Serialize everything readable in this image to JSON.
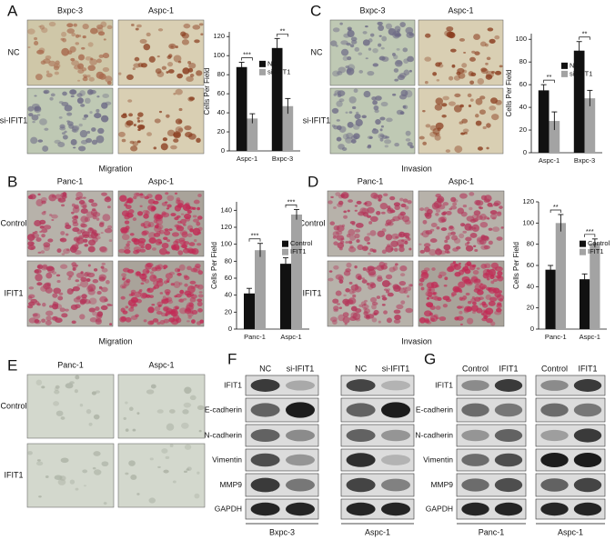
{
  "panels": {
    "A": {
      "label": "A",
      "columns": [
        "Bxpc-3",
        "Aspc-1"
      ],
      "rows": [
        "NC",
        "si-IFIT1"
      ],
      "caption": "Migration"
    },
    "B": {
      "label": "B",
      "columns": [
        "Panc-1",
        "Aspc-1"
      ],
      "rows": [
        "Control",
        "IFIT1"
      ],
      "caption": "Migration"
    },
    "C": {
      "label": "C",
      "columns": [
        "Bxpc-3",
        "Aspc-1"
      ],
      "rows": [
        "NC",
        "si-IFIT1"
      ],
      "caption": "Invasion"
    },
    "D": {
      "label": "D",
      "columns": [
        "Panc-1",
        "Aspc-1"
      ],
      "rows": [
        "Control",
        "IFIT1"
      ],
      "caption": "Invasion"
    },
    "E": {
      "label": "E",
      "columns": [
        "Panc-1",
        "Aspc-1"
      ],
      "rows": [
        "Control",
        "IFIT1"
      ]
    },
    "F": {
      "label": "F",
      "lanes": [
        "NC",
        "si-IFIT1",
        "NC",
        "si-IFIT1"
      ],
      "proteins": [
        "IFIT1",
        "E-cadherin",
        "N-cadherin",
        "Vimentin",
        "MMP9",
        "GAPDH"
      ],
      "groups": [
        "Bxpc-3",
        "Aspc-1"
      ]
    },
    "G": {
      "label": "G",
      "lanes": [
        "Control",
        "IFIT1",
        "Control",
        "IFIT1"
      ],
      "proteins": [
        "IFIT1",
        "E-cadherin",
        "N-cadherin",
        "Vimentin",
        "MMP9",
        "GAPDH"
      ],
      "groups": [
        "Panc-1",
        "Aspc-1"
      ]
    }
  },
  "chart_data": [
    {
      "type": "bar",
      "ylabel": "Cells Per Field",
      "categories": [
        "Aspc-1",
        "Bxpc-3"
      ],
      "series": [
        {
          "name": "NC",
          "color": "#111111",
          "values": [
            88,
            108
          ],
          "errors": [
            5,
            10
          ]
        },
        {
          "name": "si-IFIT1",
          "color": "#a3a3a3",
          "values": [
            34,
            47
          ],
          "errors": [
            5,
            8
          ]
        }
      ],
      "significance": [
        "***",
        "**"
      ],
      "ylim": [
        0,
        125
      ],
      "yticks": [
        0,
        20,
        40,
        60,
        80,
        100,
        120
      ],
      "legend": "upper right"
    },
    {
      "type": "bar",
      "ylabel": "Cells Per Field",
      "categories": [
        "Panc-1",
        "Aspc-1"
      ],
      "series": [
        {
          "name": "Control",
          "color": "#111111",
          "values": [
            42,
            77
          ],
          "errors": [
            6,
            7
          ]
        },
        {
          "name": "IFIT1",
          "color": "#a3a3a3",
          "values": [
            93,
            135
          ],
          "errors": [
            8,
            6
          ]
        }
      ],
      "significance": [
        "***",
        "***"
      ],
      "ylim": [
        0,
        150
      ],
      "yticks": [
        0,
        20,
        40,
        60,
        80,
        100,
        120,
        140
      ],
      "legend": "center right"
    },
    {
      "type": "bar",
      "ylabel": "Cells Per Field",
      "categories": [
        "Aspc-1",
        "Bxpc-3"
      ],
      "series": [
        {
          "name": "NC",
          "color": "#111111",
          "values": [
            55,
            90
          ],
          "errors": [
            5,
            8
          ]
        },
        {
          "name": "si-IFIT1",
          "color": "#a3a3a3",
          "values": [
            28,
            48
          ],
          "errors": [
            8,
            7
          ]
        }
      ],
      "significance": [
        "**",
        "**"
      ],
      "ylim": [
        0,
        105
      ],
      "yticks": [
        0,
        20,
        40,
        60,
        80,
        100
      ],
      "legend": "upper right"
    },
    {
      "type": "bar",
      "ylabel": "Cells Per Field",
      "categories": [
        "Panc-1",
        "Aspc-1"
      ],
      "series": [
        {
          "name": "Control",
          "color": "#111111",
          "values": [
            56,
            47
          ],
          "errors": [
            4,
            5
          ]
        },
        {
          "name": "IFIT1",
          "color": "#a3a3a3",
          "values": [
            100,
            81
          ],
          "errors": [
            8,
            4
          ]
        }
      ],
      "significance": [
        "**",
        "***"
      ],
      "ylim": [
        0,
        120
      ],
      "yticks": [
        0,
        20,
        40,
        60,
        80,
        100,
        120
      ],
      "legend": "center right"
    }
  ]
}
